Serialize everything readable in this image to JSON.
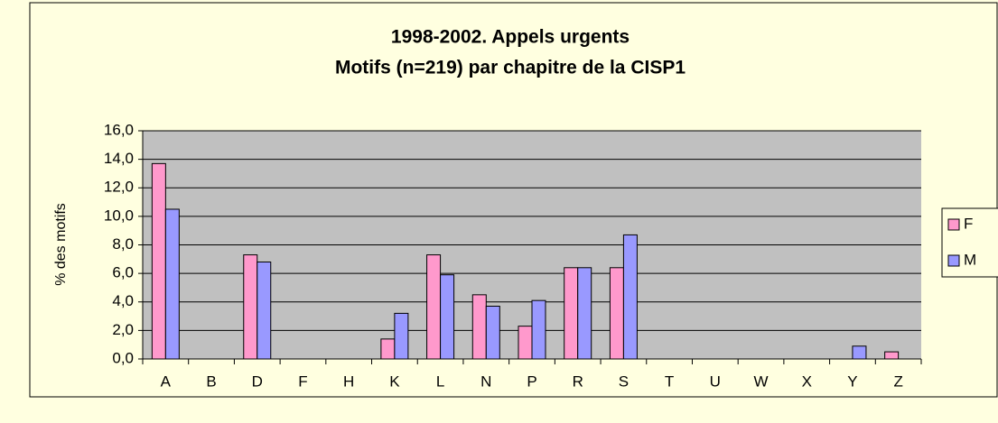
{
  "chart_data": {
    "type": "bar",
    "title": "1998-2002. Appels urgents",
    "subtitle": "Motifs (n=219) par chapitre de la CISP1",
    "y_label": "% des motifs",
    "categories": [
      "A",
      "B",
      "D",
      "F",
      "H",
      "K",
      "L",
      "N",
      "P",
      "R",
      "S",
      "T",
      "U",
      "W",
      "X",
      "Y",
      "Z"
    ],
    "series": [
      {
        "name": "F",
        "color": "#ff99cc",
        "values": [
          13.7,
          0,
          7.3,
          0,
          0,
          1.4,
          7.3,
          4.5,
          2.3,
          6.4,
          6.4,
          0,
          0,
          0,
          0,
          0,
          0.5
        ]
      },
      {
        "name": "M",
        "color": "#9999ff",
        "values": [
          10.5,
          0,
          6.8,
          0,
          0,
          3.2,
          5.9,
          3.7,
          4.1,
          6.4,
          8.7,
          0,
          0,
          0,
          0,
          0.9,
          0
        ]
      }
    ],
    "ylim": [
      0,
      16
    ],
    "yticks": [
      {
        "value": 0,
        "label": "0,0"
      },
      {
        "value": 2,
        "label": "2,0"
      },
      {
        "value": 4,
        "label": "4,0"
      },
      {
        "value": 6,
        "label": "6,0"
      },
      {
        "value": 8,
        "label": "8,0"
      },
      {
        "value": 10,
        "label": "10,0"
      },
      {
        "value": 12,
        "label": "12,0"
      },
      {
        "value": 14,
        "label": "14,0"
      },
      {
        "value": 16,
        "label": "16,0"
      }
    ],
    "grid": true,
    "legend": "right"
  }
}
